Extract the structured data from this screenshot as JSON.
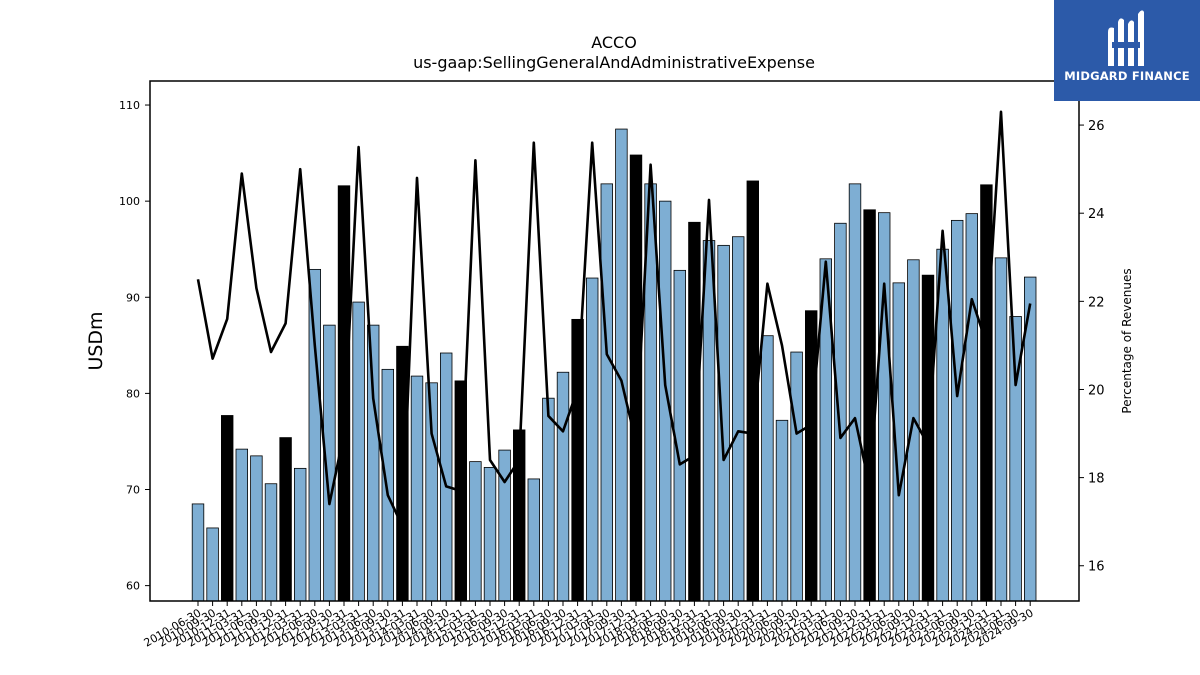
{
  "chart_data": {
    "type": "bar",
    "title": "ACCO",
    "subtitle": "us-gaap:SellingGeneralAndAdministrativeExpense",
    "ylabel": "USDm",
    "y2label": "Percentage of Revenues",
    "ylim": [
      58.4,
      112.5
    ],
    "y2lim": [
      15.2,
      27.0
    ],
    "yticks": [
      60,
      70,
      80,
      90,
      100,
      110
    ],
    "y2ticks": [
      16,
      18,
      20,
      22,
      24,
      26
    ],
    "categories": [
      "2010-06-30",
      "2010-09-30",
      "2010-12-31",
      "2011-03-31",
      "2011-06-30",
      "2011-09-30",
      "2011-12-31",
      "2012-03-31",
      "2012-06-30",
      "2012-09-30",
      "2012-12-31",
      "2013-03-31",
      "2013-06-30",
      "2013-09-30",
      "2013-12-31",
      "2014-03-31",
      "2014-06-30",
      "2014-09-30",
      "2014-12-31",
      "2015-03-31",
      "2015-06-30",
      "2015-09-30",
      "2015-12-31",
      "2016-03-31",
      "2016-06-30",
      "2016-09-30",
      "2016-12-31",
      "2017-03-31",
      "2017-06-30",
      "2017-09-30",
      "2017-12-31",
      "2018-03-31",
      "2018-06-30",
      "2018-09-30",
      "2018-12-31",
      "2019-03-31",
      "2019-06-30",
      "2019-09-30",
      "2019-12-31",
      "2020-03-31",
      "2020-06-30",
      "2020-09-30",
      "2020-12-31",
      "2021-03-31",
      "2021-06-30",
      "2021-09-30",
      "2021-12-31",
      "2022-03-31",
      "2022-06-30",
      "2022-09-30",
      "2022-12-31",
      "2023-03-31",
      "2023-06-30",
      "2023-09-30",
      "2023-12-31",
      "2024-03-31",
      "2024-06-30",
      "2024-09-30"
    ],
    "bar_values": [
      68.5,
      66.0,
      77.7,
      74.2,
      73.5,
      70.6,
      75.4,
      72.2,
      92.9,
      87.1,
      101.6,
      89.5,
      87.1,
      82.5,
      84.9,
      81.8,
      81.1,
      84.2,
      81.3,
      72.9,
      72.3,
      74.1,
      76.2,
      71.1,
      79.5,
      82.2,
      87.7,
      92.0,
      101.8,
      107.5,
      104.8,
      101.8,
      100.0,
      92.8,
      97.8,
      95.9,
      95.4,
      96.3,
      102.1,
      86.0,
      77.2,
      84.3,
      88.6,
      94.0,
      97.7,
      101.8,
      99.1,
      98.8,
      91.5,
      93.9,
      92.3,
      95.0,
      98.0,
      98.7,
      101.7,
      94.1,
      88.0,
      92.1
    ],
    "highlight": [
      false,
      false,
      true,
      false,
      false,
      false,
      true,
      false,
      false,
      false,
      true,
      false,
      false,
      false,
      true,
      false,
      false,
      false,
      true,
      false,
      false,
      false,
      true,
      false,
      false,
      false,
      true,
      false,
      false,
      false,
      true,
      false,
      false,
      false,
      true,
      false,
      false,
      false,
      true,
      false,
      false,
      false,
      true,
      false,
      false,
      false,
      true,
      false,
      false,
      false,
      true,
      false,
      false,
      false,
      true,
      false,
      false,
      false
    ],
    "line_values": [
      22.5,
      20.7,
      21.6,
      24.9,
      22.3,
      20.85,
      21.5,
      25.0,
      21.0,
      17.4,
      19.0,
      25.5,
      19.8,
      17.6,
      16.9,
      24.8,
      19.0,
      17.8,
      17.7,
      25.2,
      18.4,
      17.9,
      18.4,
      25.6,
      19.4,
      19.05,
      20.0,
      25.6,
      20.8,
      20.2,
      18.8,
      25.1,
      20.1,
      18.3,
      18.5,
      24.3,
      18.4,
      19.05,
      19.0,
      22.4,
      21.0,
      19.0,
      19.2,
      22.9,
      18.9,
      19.35,
      17.8,
      22.4,
      17.6,
      19.35,
      18.75,
      23.6,
      19.85,
      22.05,
      21.05,
      26.3,
      20.1,
      21.95
    ],
    "bar_color": "#7eaed3",
    "highlight_color": "#000000",
    "line_color": "#000000"
  },
  "logo": {
    "text": "MIDGARD FINANCE",
    "background": "#2c5aa9"
  }
}
